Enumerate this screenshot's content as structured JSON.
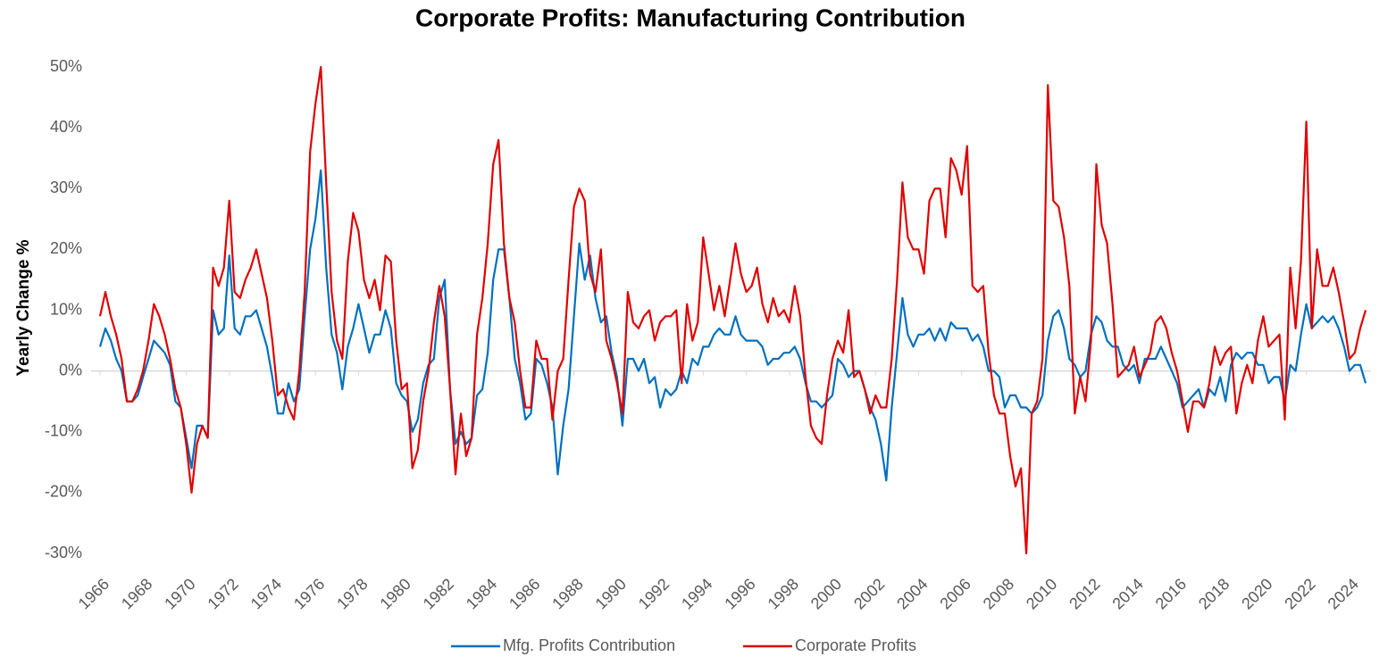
{
  "chart_data": {
    "type": "line",
    "title": "Corporate Profits: Manufacturing Contribution",
    "y_label": "Yearly Change %",
    "x": [
      1966,
      1966.25,
      1966.5,
      1966.75,
      1967,
      1967.25,
      1967.5,
      1967.75,
      1968,
      1968.25,
      1968.5,
      1968.75,
      1969,
      1969.25,
      1969.5,
      1969.75,
      1970,
      1970.25,
      1970.5,
      1970.75,
      1971,
      1971.25,
      1971.5,
      1971.75,
      1972,
      1972.25,
      1972.5,
      1972.75,
      1973,
      1973.25,
      1973.5,
      1973.75,
      1974,
      1974.25,
      1974.5,
      1974.75,
      1975,
      1975.25,
      1975.5,
      1975.75,
      1976,
      1976.25,
      1976.5,
      1976.75,
      1977,
      1977.25,
      1977.5,
      1977.75,
      1978,
      1978.25,
      1978.5,
      1978.75,
      1979,
      1979.25,
      1979.5,
      1979.75,
      1980,
      1980.25,
      1980.5,
      1980.75,
      1981,
      1981.25,
      1981.5,
      1981.75,
      1982,
      1982.25,
      1982.5,
      1982.75,
      1983,
      1983.25,
      1983.5,
      1983.75,
      1984,
      1984.25,
      1984.5,
      1984.75,
      1985,
      1985.25,
      1985.5,
      1985.75,
      1986,
      1986.25,
      1986.5,
      1986.75,
      1987,
      1987.25,
      1987.5,
      1987.75,
      1988,
      1988.25,
      1988.5,
      1988.75,
      1989,
      1989.25,
      1989.5,
      1989.75,
      1990,
      1990.25,
      1990.5,
      1990.75,
      1991,
      1991.25,
      1991.5,
      1991.75,
      1992,
      1992.25,
      1992.5,
      1992.75,
      1993,
      1993.25,
      1993.5,
      1993.75,
      1994,
      1994.25,
      1994.5,
      1994.75,
      1995,
      1995.25,
      1995.5,
      1995.75,
      1996,
      1996.25,
      1996.5,
      1996.75,
      1997,
      1997.25,
      1997.5,
      1997.75,
      1998,
      1998.25,
      1998.5,
      1998.75,
      1999,
      1999.25,
      1999.5,
      1999.75,
      2000,
      2000.25,
      2000.5,
      2000.75,
      2001,
      2001.25,
      2001.5,
      2001.75,
      2002,
      2002.25,
      2002.5,
      2002.75,
      2003,
      2003.25,
      2003.5,
      2003.75,
      2004,
      2004.25,
      2004.5,
      2004.75,
      2005,
      2005.25,
      2005.5,
      2005.75,
      2006,
      2006.25,
      2006.5,
      2006.75,
      2007,
      2007.25,
      2007.5,
      2007.75,
      2008,
      2008.25,
      2008.5,
      2008.75,
      2009,
      2009.25,
      2009.5,
      2009.75,
      2010,
      2010.25,
      2010.5,
      2010.75,
      2011,
      2011.25,
      2011.5,
      2011.75,
      2012,
      2012.25,
      2012.5,
      2012.75,
      2013,
      2013.25,
      2013.5,
      2013.75,
      2014,
      2014.25,
      2014.5,
      2014.75,
      2015,
      2015.25,
      2015.5,
      2015.75,
      2016,
      2016.25,
      2016.5,
      2016.75,
      2017,
      2017.25,
      2017.5,
      2017.75,
      2018,
      2018.25,
      2018.5,
      2018.75,
      2019,
      2019.25,
      2019.5,
      2019.75,
      2020,
      2020.25,
      2020.5,
      2020.75,
      2021,
      2021.25,
      2021.5,
      2021.75,
      2022,
      2022.25,
      2022.5,
      2022.75,
      2023,
      2023.25,
      2023.5,
      2023.75,
      2024,
      2024.25,
      2024.5,
      2024.75
    ],
    "series": [
      {
        "name": "Mfg. Profits Contribution",
        "color": "#0070c0",
        "values": [
          4,
          7,
          5,
          2,
          0,
          -5,
          -5,
          -4,
          -1,
          2,
          5,
          4,
          3,
          1,
          -5,
          -6,
          -11,
          -16,
          -9,
          -9,
          -11,
          10,
          6,
          7,
          19,
          7,
          6,
          9,
          9,
          10,
          7,
          4,
          -1,
          -7,
          -7,
          -2,
          -5,
          -3,
          9,
          20,
          25,
          33,
          17,
          6,
          3,
          -3,
          4,
          7,
          11,
          7,
          3,
          6,
          6,
          10,
          7,
          -2,
          -4,
          -5,
          -10,
          -8,
          -2,
          1,
          2,
          12,
          15,
          -3,
          -12,
          -10,
          -12,
          -11,
          -4,
          -3,
          3,
          15,
          20,
          20,
          12,
          2,
          -2,
          -8,
          -7,
          2,
          1,
          -2,
          -6,
          -17,
          -9,
          -3,
          9,
          21,
          15,
          19,
          12,
          8,
          9,
          3,
          -1,
          -9,
          2,
          2,
          0,
          2,
          -2,
          -1,
          -6,
          -3,
          -4,
          -3,
          0,
          -2,
          2,
          1,
          4,
          4,
          6,
          7,
          6,
          6,
          9,
          6,
          5,
          5,
          5,
          4,
          1,
          2,
          2,
          3,
          3,
          4,
          2,
          -2,
          -5,
          -5,
          -6,
          -5,
          -4,
          2,
          1,
          -1,
          0,
          0,
          -3,
          -6,
          -8,
          -12,
          -18,
          -6,
          3,
          12,
          6,
          4,
          6,
          6,
          7,
          5,
          7,
          5,
          8,
          7,
          7,
          7,
          5,
          6,
          4,
          0,
          0,
          -1,
          -6,
          -4,
          -4,
          -6,
          -6,
          -7,
          -6,
          -4,
          5,
          9,
          10,
          7,
          2,
          1,
          -1,
          0,
          6,
          9,
          8,
          5,
          4,
          4,
          1,
          0,
          1,
          -2,
          2,
          2,
          2,
          4,
          2,
          0,
          -2,
          -6,
          -5,
          -4,
          -3,
          -6,
          -3,
          -4,
          -1,
          -5,
          1,
          3,
          2,
          3,
          3,
          1,
          1,
          -2,
          -1,
          -1,
          -5,
          1,
          0,
          6,
          11,
          7,
          8,
          9,
          8,
          9,
          7,
          4,
          0,
          1,
          1,
          -2
        ]
      },
      {
        "name": "Corporate Profits",
        "color": "#e00000",
        "values": [
          9,
          13,
          9,
          6,
          2,
          -5,
          -5,
          -3,
          0,
          5,
          11,
          9,
          6,
          2,
          -3,
          -6,
          -12,
          -20,
          -12,
          -9,
          -11,
          17,
          14,
          17,
          28,
          13,
          12,
          15,
          17,
          20,
          16,
          12,
          5,
          -4,
          -3,
          -6,
          -8,
          0,
          13,
          36,
          44,
          50,
          31,
          13,
          5,
          2,
          18,
          26,
          23,
          15,
          12,
          15,
          10,
          19,
          18,
          5,
          -3,
          -2,
          -16,
          -13,
          -5,
          0,
          8,
          14,
          9,
          -3,
          -17,
          -7,
          -14,
          -11,
          6,
          12,
          21,
          34,
          38,
          21,
          12,
          8,
          0,
          -6,
          -6,
          5,
          2,
          2,
          -8,
          0,
          2,
          15,
          27,
          30,
          28,
          16,
          13,
          20,
          5,
          2,
          -2,
          -7,
          13,
          8,
          7,
          9,
          10,
          5,
          8,
          9,
          9,
          10,
          -2,
          11,
          5,
          8,
          22,
          16,
          10,
          14,
          9,
          15,
          21,
          16,
          13,
          14,
          17,
          11,
          8,
          12,
          9,
          10,
          8,
          14,
          9,
          -1,
          -9,
          -11,
          -12,
          -4,
          2,
          5,
          3,
          10,
          -1,
          0,
          -3,
          -7,
          -4,
          -6,
          -6,
          2,
          15,
          31,
          22,
          20,
          20,
          16,
          28,
          30,
          30,
          22,
          35,
          33,
          29,
          37,
          14,
          13,
          14,
          3,
          -4,
          -7,
          -7,
          -14,
          -19,
          -16,
          -30,
          -7,
          -5,
          2,
          47,
          28,
          27,
          22,
          14,
          -7,
          -1,
          -5,
          5,
          34,
          24,
          21,
          11,
          -1,
          0,
          1,
          4,
          -1,
          1,
          3,
          8,
          9,
          7,
          3,
          0,
          -5,
          -10,
          -5,
          -5,
          -6,
          -2,
          4,
          1,
          3,
          4,
          -7,
          -2,
          1,
          -2,
          5,
          9,
          4,
          5,
          6,
          -8,
          17,
          7,
          18,
          41,
          7,
          20,
          14,
          14,
          17,
          13,
          8,
          2,
          3,
          7,
          10
        ]
      }
    ],
    "xlim": [
      1966,
      2025
    ],
    "xticks": [
      1966,
      1968,
      1970,
      1972,
      1974,
      1976,
      1978,
      1980,
      1982,
      1984,
      1986,
      1988,
      1990,
      1992,
      1994,
      1996,
      1998,
      2000,
      2002,
      2004,
      2006,
      2008,
      2010,
      2012,
      2014,
      2016,
      2018,
      2020,
      2022,
      2024
    ],
    "ylim": [
      -30,
      50
    ],
    "yticks": [
      {
        "value": -30,
        "label": "-30%"
      },
      {
        "value": -20,
        "label": "-20%"
      },
      {
        "value": -10,
        "label": "-10%"
      },
      {
        "value": 0,
        "label": "0%"
      },
      {
        "value": 10,
        "label": "10%"
      },
      {
        "value": 20,
        "label": "20%"
      },
      {
        "value": 30,
        "label": "30%"
      },
      {
        "value": 40,
        "label": "40%"
      },
      {
        "value": 50,
        "label": "50%"
      }
    ],
    "legend": "bottom"
  }
}
